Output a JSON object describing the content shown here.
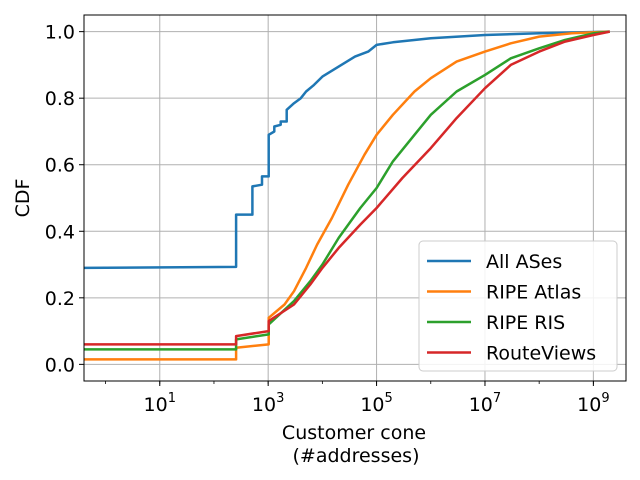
{
  "chart_data": {
    "type": "line",
    "title": "",
    "xlabel_line1": "Customer cone",
    "xlabel_line2": "(#addresses)",
    "ylabel": "CDF",
    "x_scale": "log10",
    "xlim": [
      0.4,
      4000000000
    ],
    "ylim": [
      -0.05,
      1.05
    ],
    "x_ticks": [
      {
        "value": 10,
        "base": "10",
        "exp": "1"
      },
      {
        "value": 1000,
        "base": "10",
        "exp": "3"
      },
      {
        "value": 100000,
        "base": "10",
        "exp": "5"
      },
      {
        "value": 10000000,
        "base": "10",
        "exp": "7"
      },
      {
        "value": 1000000000,
        "base": "10",
        "exp": "9"
      }
    ],
    "y_ticks": [
      {
        "value": 0.0,
        "label": "0.0"
      },
      {
        "value": 0.2,
        "label": "0.2"
      },
      {
        "value": 0.4,
        "label": "0.4"
      },
      {
        "value": 0.6,
        "label": "0.6"
      },
      {
        "value": 0.8,
        "label": "0.8"
      },
      {
        "value": 1.0,
        "label": "1.0"
      }
    ],
    "grid": true,
    "legend_position": "lower-right",
    "series": [
      {
        "name": "All ASes",
        "color": "#1f77b4",
        "points": [
          [
            0.4,
            0.29
          ],
          [
            256,
            0.293
          ],
          [
            256,
            0.45
          ],
          [
            512,
            0.45
          ],
          [
            512,
            0.535
          ],
          [
            768,
            0.54
          ],
          [
            768,
            0.565
          ],
          [
            1024,
            0.565
          ],
          [
            1024,
            0.69
          ],
          [
            1300,
            0.7
          ],
          [
            1300,
            0.715
          ],
          [
            1700,
            0.72
          ],
          [
            1700,
            0.73
          ],
          [
            2200,
            0.73
          ],
          [
            2200,
            0.765
          ],
          [
            3000,
            0.785
          ],
          [
            4000,
            0.8
          ],
          [
            5000,
            0.82
          ],
          [
            7000,
            0.84
          ],
          [
            10000,
            0.865
          ],
          [
            20000,
            0.895
          ],
          [
            40000,
            0.925
          ],
          [
            70000,
            0.94
          ],
          [
            100000,
            0.96
          ],
          [
            200000,
            0.968
          ],
          [
            1000000,
            0.98
          ],
          [
            10000000,
            0.99
          ],
          [
            100000000,
            0.995
          ],
          [
            2000000000,
            1.0
          ]
        ]
      },
      {
        "name": "RIPE Atlas",
        "color": "#ff7f0e",
        "points": [
          [
            0.4,
            0.015
          ],
          [
            256,
            0.015
          ],
          [
            256,
            0.05
          ],
          [
            1024,
            0.06
          ],
          [
            1024,
            0.14
          ],
          [
            2000,
            0.18
          ],
          [
            3000,
            0.22
          ],
          [
            5000,
            0.29
          ],
          [
            8000,
            0.36
          ],
          [
            15000,
            0.44
          ],
          [
            30000,
            0.54
          ],
          [
            60000,
            0.63
          ],
          [
            100000,
            0.69
          ],
          [
            200000,
            0.75
          ],
          [
            500000,
            0.82
          ],
          [
            1000000,
            0.86
          ],
          [
            3000000,
            0.91
          ],
          [
            10000000,
            0.94
          ],
          [
            30000000,
            0.965
          ],
          [
            100000000,
            0.985
          ],
          [
            400000000,
            0.995
          ],
          [
            2000000000,
            1.0
          ]
        ]
      },
      {
        "name": "RIPE RIS",
        "color": "#2ca02c",
        "points": [
          [
            0.4,
            0.045
          ],
          [
            256,
            0.045
          ],
          [
            256,
            0.075
          ],
          [
            1024,
            0.09
          ],
          [
            1024,
            0.12
          ],
          [
            3000,
            0.19
          ],
          [
            6000,
            0.25
          ],
          [
            10000,
            0.3
          ],
          [
            20000,
            0.38
          ],
          [
            50000,
            0.47
          ],
          [
            100000,
            0.53
          ],
          [
            200000,
            0.61
          ],
          [
            500000,
            0.69
          ],
          [
            1000000,
            0.75
          ],
          [
            3000000,
            0.82
          ],
          [
            10000000,
            0.87
          ],
          [
            30000000,
            0.92
          ],
          [
            100000000,
            0.95
          ],
          [
            300000000,
            0.975
          ],
          [
            1000000000,
            0.995
          ],
          [
            2000000000,
            1.0
          ]
        ]
      },
      {
        "name": "RouteViews",
        "color": "#d62728",
        "points": [
          [
            0.4,
            0.06
          ],
          [
            256,
            0.06
          ],
          [
            256,
            0.085
          ],
          [
            1024,
            0.1
          ],
          [
            1024,
            0.13
          ],
          [
            3000,
            0.18
          ],
          [
            6000,
            0.24
          ],
          [
            10000,
            0.29
          ],
          [
            20000,
            0.35
          ],
          [
            50000,
            0.42
          ],
          [
            100000,
            0.47
          ],
          [
            300000,
            0.56
          ],
          [
            1000000,
            0.65
          ],
          [
            3000000,
            0.74
          ],
          [
            10000000,
            0.83
          ],
          [
            30000000,
            0.9
          ],
          [
            100000000,
            0.94
          ],
          [
            300000000,
            0.97
          ],
          [
            1000000000,
            0.99
          ],
          [
            2000000000,
            1.0
          ]
        ]
      }
    ]
  }
}
